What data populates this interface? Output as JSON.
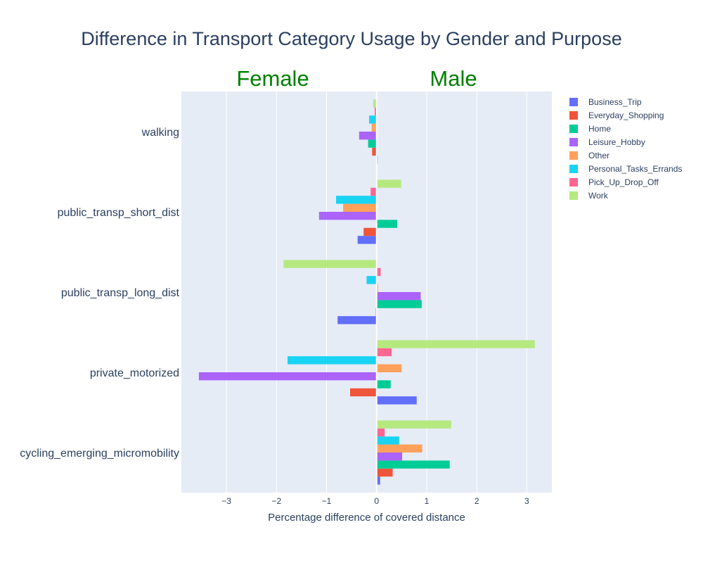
{
  "chart_data": {
    "type": "bar",
    "orientation": "horizontal",
    "title": "Difference in Transport Category Usage by Gender and Purpose",
    "xlabel": "Percentage difference of covered distance",
    "ylabel": "",
    "xlim": [
      -3.9,
      3.5
    ],
    "x_ticks": [
      -3,
      -2,
      -1,
      0,
      1,
      2,
      3
    ],
    "x_tick_labels": [
      "−3",
      "−2",
      "−1",
      "0",
      "1",
      "2",
      "3"
    ],
    "grid": true,
    "legend_position": "right",
    "annotations": [
      {
        "text": "Female",
        "side": "left"
      },
      {
        "text": "Male",
        "side": "right"
      }
    ],
    "categories": [
      "walking",
      "public_transp_short_dist",
      "public_transp_long_dist",
      "private_motorized",
      "cycling_emerging_micromobility"
    ],
    "series": [
      {
        "name": "Business_Trip",
        "color": "#636efa",
        "values": [
          0.02,
          -0.38,
          -0.78,
          0.8,
          0.07
        ]
      },
      {
        "name": "Everyday_Shopping",
        "color": "#ef553b",
        "values": [
          -0.09,
          -0.26,
          -0.02,
          -0.53,
          0.32
        ]
      },
      {
        "name": "Home",
        "color": "#00cc96",
        "values": [
          -0.17,
          0.41,
          0.9,
          0.28,
          1.46
        ]
      },
      {
        "name": "Leisure_Hobby",
        "color": "#ab63fa",
        "values": [
          -0.35,
          -1.15,
          0.88,
          -3.55,
          0.51
        ]
      },
      {
        "name": "Other",
        "color": "#ffa15a",
        "values": [
          -0.1,
          -0.67,
          0.03,
          0.5,
          0.91
        ]
      },
      {
        "name": "Personal_Tasks_Errands",
        "color": "#19d3f3",
        "values": [
          -0.15,
          -0.81,
          -0.2,
          -1.78,
          0.45
        ]
      },
      {
        "name": "Pick_Up_Drop_Off",
        "color": "#ff6692",
        "values": [
          -0.04,
          -0.12,
          0.08,
          0.3,
          0.16
        ]
      },
      {
        "name": "Work",
        "color": "#b6e880",
        "values": [
          -0.07,
          0.49,
          -1.86,
          3.16,
          1.49
        ]
      }
    ]
  }
}
